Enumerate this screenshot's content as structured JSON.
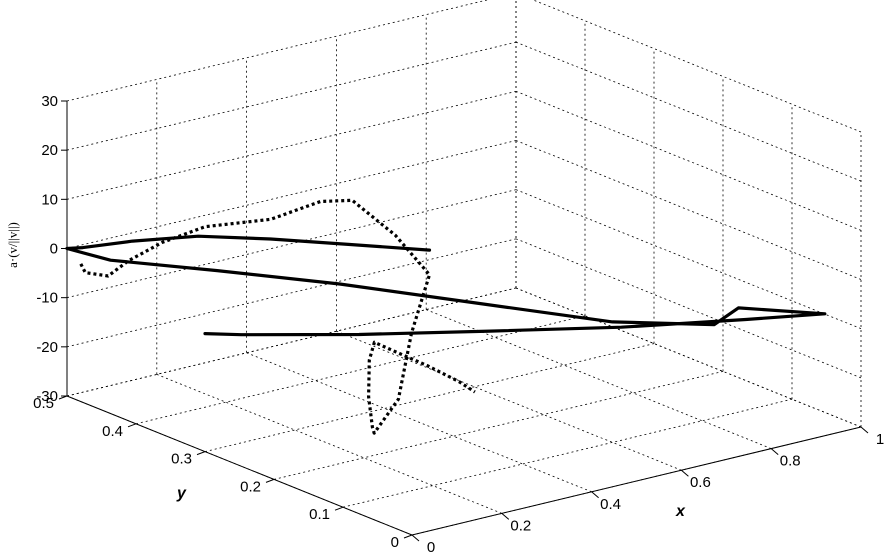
{
  "chart_data": {
    "type": "line",
    "projection": "3d",
    "grid": true,
    "xlabel": "x",
    "ylabel": "y",
    "zlabel": "a·(v/||v||)",
    "xlim": [
      0,
      1
    ],
    "ylim": [
      0,
      0.5
    ],
    "zlim": [
      -30,
      30
    ],
    "x_ticks": [
      "0",
      "0.2",
      "0.4",
      "0.6",
      "0.8",
      "1"
    ],
    "y_ticks": [
      "0",
      "0.1",
      "0.2",
      "0.3",
      "0.4",
      "0.5"
    ],
    "z_ticks": [
      "30",
      "20",
      "10",
      "0",
      "-10",
      "-20",
      "-30"
    ],
    "series": [
      {
        "style": "solid",
        "color": "#000000",
        "x": [
          0.5,
          0.4,
          0.3,
          0.2,
          0.1,
          0.02,
          0.0,
          0.02,
          0.15,
          0.3,
          0.45,
          0.6,
          0.75,
          0.85,
          0.95,
          0.82,
          0.62,
          0.42,
          0.22,
          0.05,
          0.0
        ],
        "y": [
          0.3,
          0.35,
          0.4,
          0.44,
          0.47,
          0.49,
          0.5,
          0.45,
          0.38,
          0.3,
          0.2,
          0.1,
          0.05,
          0.08,
          0.02,
          0.05,
          0.1,
          0.16,
          0.22,
          0.28,
          0.3
        ],
        "z": [
          0.0,
          0.5,
          1.0,
          1.5,
          1.0,
          0.3,
          0.0,
          0.0,
          -1.0,
          -2.5,
          -4.0,
          -5.5,
          -6.5,
          -7.0,
          -7.0,
          -7.0,
          -7.0,
          -6.8,
          -6.5,
          -6.2,
          -6.0
        ]
      },
      {
        "style": "dotted",
        "color": "#000000",
        "x": [
          0.0,
          0.01,
          0.03,
          0.06,
          0.12,
          0.2,
          0.3,
          0.38,
          0.42,
          0.47,
          0.5,
          0.46,
          0.4,
          0.3,
          0.25,
          0.18,
          0.12,
          0.07,
          0.05,
          0.08,
          0.12,
          0.14
        ],
        "y": [
          0.48,
          0.48,
          0.46,
          0.45,
          0.44,
          0.43,
          0.4,
          0.38,
          0.36,
          0.33,
          0.3,
          0.3,
          0.28,
          0.25,
          0.22,
          0.18,
          0.14,
          0.1,
          0.06,
          0.03,
          0.01,
          0.0
        ],
        "z": [
          -2.0,
          -4.0,
          -4.0,
          -1.0,
          2.0,
          4.0,
          5.0,
          8.0,
          8.5,
          2.0,
          -5.0,
          -16.0,
          -27.0,
          -30.0,
          -26.0,
          -16.0,
          -5.0,
          2.0,
          3.0,
          1.0,
          -2.0,
          -4.0
        ]
      }
    ]
  }
}
